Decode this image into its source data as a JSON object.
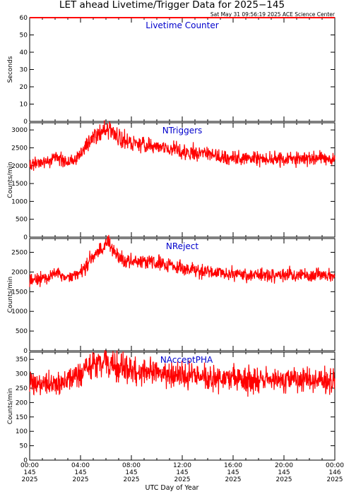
{
  "header": {
    "title": "LET ahead Livetime/Trigger Data for 2025−145",
    "subtitle": "Sat May 31 09:56:19 2025 ACE Science Center"
  },
  "xaxis": {
    "label": "UTC Day of Year",
    "ticks": [
      {
        "time": "00:00",
        "doy": "145",
        "year": "2025"
      },
      {
        "time": "04:00",
        "doy": "145",
        "year": "2025"
      },
      {
        "time": "08:00",
        "doy": "145",
        "year": "2025"
      },
      {
        "time": "12:00",
        "doy": "145",
        "year": "2025"
      },
      {
        "time": "16:00",
        "doy": "145",
        "year": "2025"
      },
      {
        "time": "20:00",
        "doy": "145",
        "year": "2025"
      },
      {
        "time": "00:00",
        "doy": "146",
        "year": "2025"
      }
    ]
  },
  "colors": {
    "series": "#ff0000",
    "panel_title": "#0000cc",
    "axis": "#000000"
  },
  "chart_data": [
    {
      "type": "line",
      "title": "Livetime Counter",
      "ylabel": "Seconds",
      "xlim_hours": [
        0,
        24
      ],
      "ylim": [
        0,
        60
      ],
      "yticks": [
        0,
        10,
        20,
        30,
        40,
        50,
        60
      ],
      "x_hours": [
        0,
        24
      ],
      "values": [
        60,
        60
      ]
    },
    {
      "type": "line",
      "title": "NTriggers",
      "ylabel": "Counts/min",
      "xlim_hours": [
        0,
        24
      ],
      "ylim": [
        0,
        3200
      ],
      "yticks": [
        0,
        500,
        1000,
        1500,
        2000,
        2500,
        3000
      ],
      "x_hours": [
        0,
        1,
        1.5,
        2,
        3,
        3.5,
        4,
        4.5,
        5,
        5.5,
        6,
        6.3,
        6.6,
        7,
        7.5,
        8,
        9,
        10,
        11,
        12,
        13,
        14,
        15,
        16,
        17,
        18,
        19,
        20,
        21,
        22,
        23,
        24
      ],
      "values": [
        2000,
        2040,
        2150,
        2250,
        2100,
        2180,
        2300,
        2600,
        2850,
        2950,
        3000,
        3050,
        2900,
        2750,
        2700,
        2650,
        2600,
        2550,
        2480,
        2400,
        2350,
        2300,
        2250,
        2220,
        2200,
        2190,
        2180,
        2200,
        2190,
        2200,
        2210,
        2180
      ]
    },
    {
      "type": "line",
      "title": "NReject",
      "ylabel": "Counts/min",
      "xlim_hours": [
        0,
        24
      ],
      "ylim": [
        0,
        2850
      ],
      "yticks": [
        0,
        500,
        1000,
        1500,
        2000,
        2500
      ],
      "x_hours": [
        0,
        1,
        1.5,
        2,
        2.5,
        3,
        3.5,
        4,
        4.5,
        5,
        5.5,
        6,
        6.3,
        6.6,
        7,
        7.5,
        8,
        9,
        10,
        11,
        12,
        13,
        14,
        15,
        16,
        17,
        18,
        19,
        20,
        21,
        22,
        23,
        24
      ],
      "values": [
        1780,
        1820,
        1850,
        2000,
        1880,
        1850,
        1900,
        2000,
        2200,
        2400,
        2550,
        2700,
        2720,
        2550,
        2400,
        2300,
        2280,
        2300,
        2250,
        2200,
        2100,
        2050,
        2000,
        1970,
        1950,
        1930,
        1920,
        1910,
        1920,
        1930,
        1920,
        1930,
        1890
      ]
    },
    {
      "type": "line",
      "title": "NAcceptPHA",
      "ylabel": "Counts/min",
      "xlim_hours": [
        0,
        24
      ],
      "ylim": [
        0,
        375
      ],
      "yticks": [
        0,
        50,
        100,
        150,
        200,
        250,
        300,
        350
      ],
      "x_hours": [
        0,
        1,
        2,
        3,
        4,
        4.5,
        5,
        5.5,
        6,
        6.5,
        7,
        8,
        9,
        10,
        11,
        12,
        13,
        14,
        15,
        16,
        17,
        18,
        19,
        20,
        21,
        22,
        23,
        24
      ],
      "values": [
        270,
        265,
        270,
        275,
        295,
        315,
        330,
        340,
        345,
        335,
        320,
        310,
        305,
        300,
        295,
        292,
        290,
        288,
        285,
        282,
        280,
        280,
        282,
        280,
        279,
        281,
        280,
        278
      ]
    }
  ]
}
